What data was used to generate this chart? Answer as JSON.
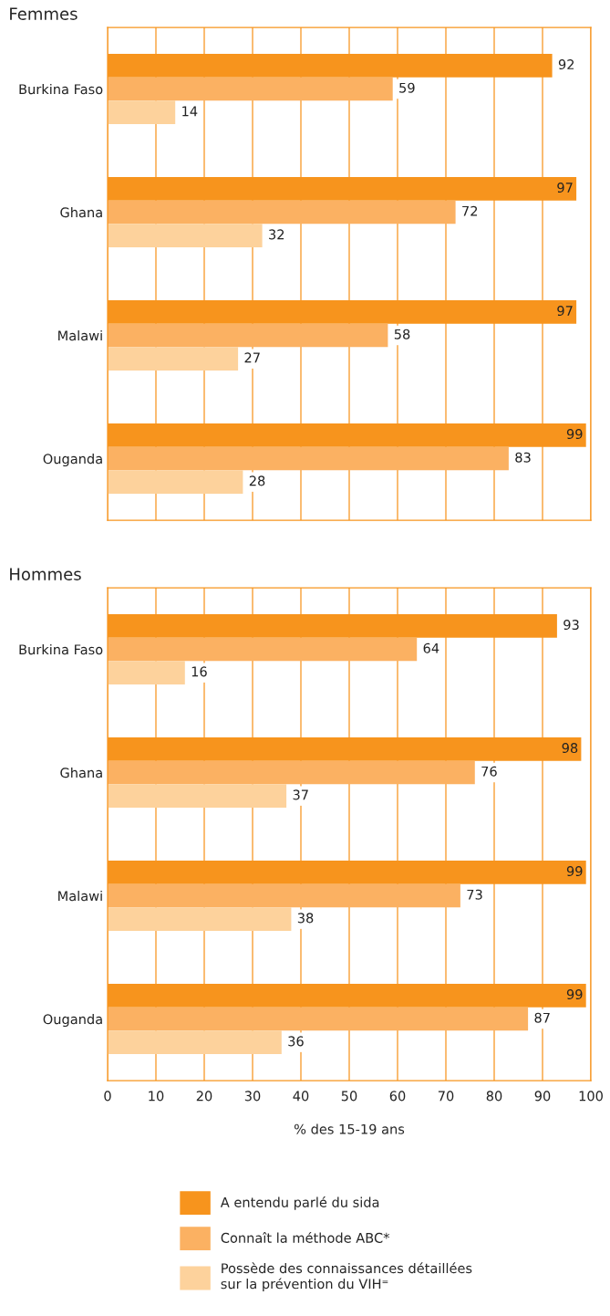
{
  "chart_data": [
    {
      "type": "bar",
      "orientation": "horizontal",
      "title": "Femmes",
      "categories": [
        "Burkina Faso",
        "Ghana",
        "Malawi",
        "Ouganda"
      ],
      "series": [
        {
          "name": "A entendu parlé du sida",
          "color": "#f7941d",
          "values": [
            92,
            97,
            97,
            99
          ]
        },
        {
          "name": "Connaît la méthode ABC*",
          "color": "#fbb162",
          "values": [
            59,
            72,
            58,
            83
          ]
        },
        {
          "name": "Possède des connaissances détaillées sur la prévention du VIH⁼",
          "color": "#fdd29c",
          "values": [
            14,
            32,
            27,
            28
          ]
        }
      ],
      "xlim": [
        0,
        100
      ],
      "xticks": [
        0,
        10,
        20,
        30,
        40,
        50,
        60,
        70,
        80,
        90,
        100
      ],
      "tick_labels": "y",
      "grid": "x",
      "data_labels": true,
      "legend": "bottom"
    },
    {
      "type": "bar",
      "orientation": "horizontal",
      "title": "Hommes",
      "categories": [
        "Burkina Faso",
        "Ghana",
        "Malawi",
        "Ouganda"
      ],
      "series": [
        {
          "color": "#f7941d",
          "values": [
            93,
            98,
            99,
            99
          ]
        },
        {
          "color": "#fbb162",
          "values": [
            64,
            76,
            73,
            87
          ]
        },
        {
          "color": "#fdd29c",
          "values": [
            16,
            37,
            38,
            36
          ]
        }
      ],
      "xlim": [
        0,
        100
      ],
      "xticks": [
        0,
        10,
        20,
        30,
        40,
        50,
        60,
        70,
        80,
        90,
        100
      ],
      "xlabel": "% des 15-19 ans",
      "grid": "x",
      "data_labels": true
    }
  ]
}
